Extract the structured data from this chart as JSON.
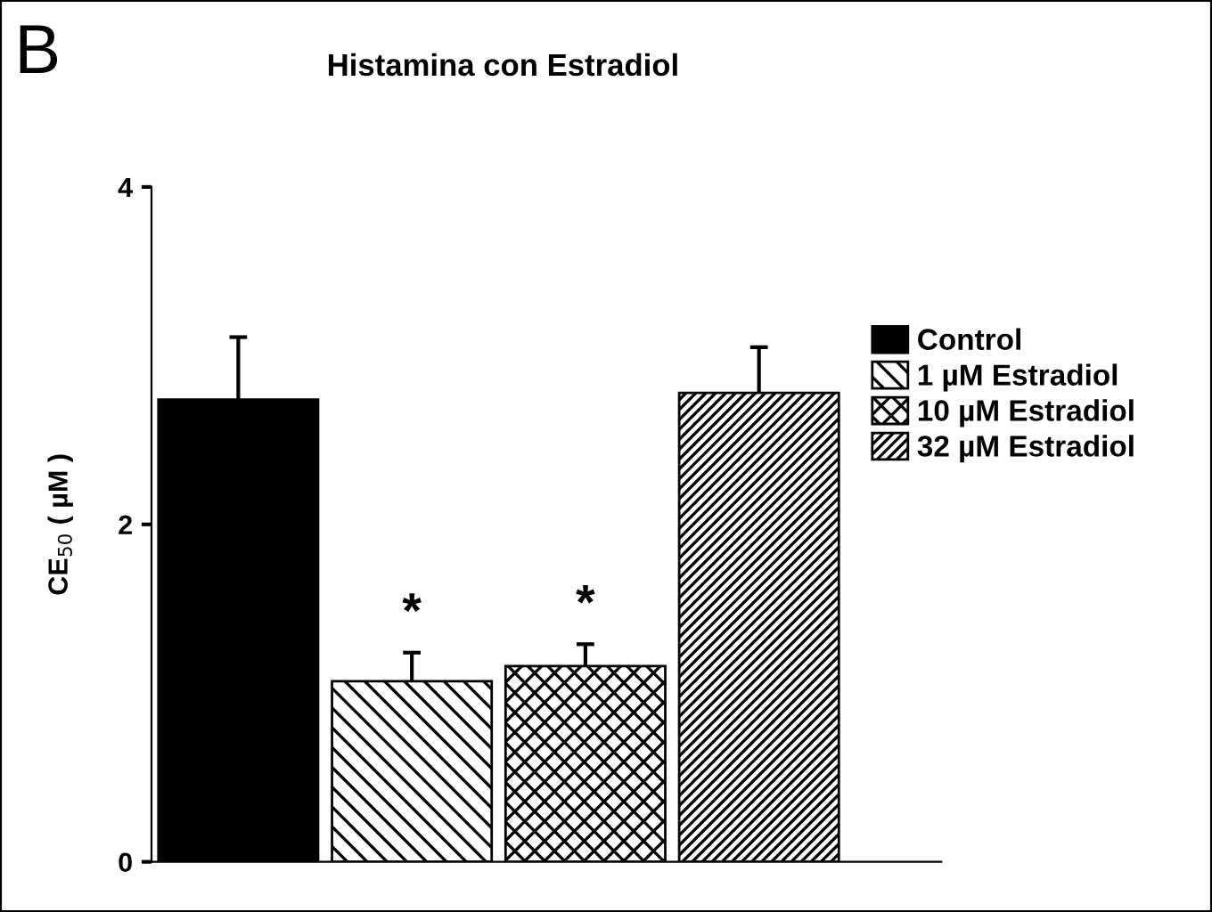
{
  "chart_data": {
    "type": "bar",
    "title": "Histamina con Estradiol",
    "ylabel": "CE$_{50}$ ( µM )",
    "annotations": [
      "B"
    ],
    "categories": [
      null,
      null,
      null,
      null
    ],
    "series": [
      {
        "name": "Control",
        "color": "#000000",
        "values": [
          2.74,
          null,
          null,
          null
        ],
        "errors": [
          [
            2.74,
            3.11
          ],
          null,
          null,
          null
        ]
      },
      {
        "name": "1 µM Estradiol",
        "color": "#000000",
        "values": [
          null,
          1.07,
          null,
          null
        ],
        "errors": [
          null,
          [
            1.07,
            1.24
          ],
          null,
          null
        ],
        "value_labels": [
          null,
          "*",
          null,
          null
        ]
      },
      {
        "name": "10 µM Estradiol",
        "color": "#000000",
        "values": [
          null,
          null,
          1.16,
          null
        ],
        "errors": [
          null,
          null,
          [
            1.16,
            1.29
          ],
          null
        ],
        "value_labels": [
          null,
          null,
          "*",
          null
        ]
      },
      {
        "name": "32 µM Estradiol",
        "color": "#000000",
        "values": [
          null,
          null,
          null,
          2.78
        ],
        "errors": [
          null,
          null,
          null,
          [
            2.78,
            3.05
          ]
        ]
      }
    ],
    "ylim": [
      0,
      4
    ],
    "yticks": [
      0,
      2,
      4
    ],
    "grid": false,
    "legend": "right"
  }
}
